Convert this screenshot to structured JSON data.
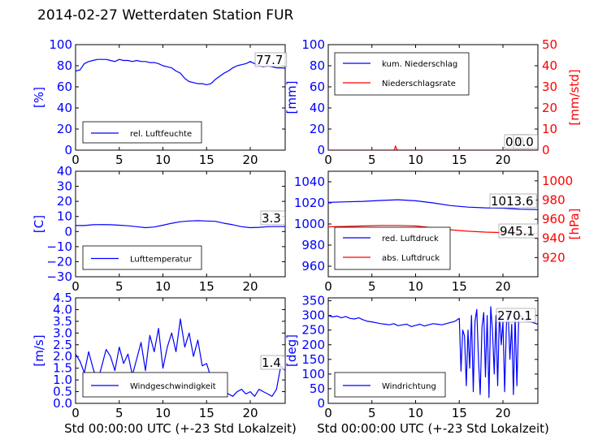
{
  "title": "2014-02-27 Wetterdaten Station FUR",
  "title_suffix": "",
  "xlabel": "Std 00:00:00 UTC (+-23 Std Lokalzeit)",
  "colors": {
    "primary": "#0000ff",
    "secondary": "#ff0000",
    "axis": "#000000"
  },
  "chart_data": [
    {
      "type": "line",
      "panel": "top-left",
      "ylabel": "[%]",
      "ylim": [
        0,
        100
      ],
      "yticks": [
        "0",
        "20",
        "40",
        "60",
        "80",
        "100"
      ],
      "xlim": [
        0,
        24
      ],
      "xticks": [
        "0",
        "5",
        "10",
        "15",
        "20"
      ],
      "legend": {
        "placement": "lower-left",
        "entries": [
          "rel. Luftfeuchte"
        ]
      },
      "annotations": [
        "77.7"
      ],
      "series": [
        {
          "name": "rel. Luftfeuchte",
          "color": "#0000ff",
          "x": [
            0,
            0.5,
            1,
            1.5,
            2,
            2.5,
            3,
            3.5,
            4,
            4.5,
            5,
            5.5,
            6,
            6.5,
            7,
            7.5,
            8,
            8.5,
            9,
            9.5,
            10,
            10.5,
            11,
            11.5,
            12,
            12.5,
            13,
            13.5,
            14,
            14.5,
            15,
            15.5,
            16,
            16.5,
            17,
            17.5,
            18,
            18.5,
            19,
            19.5,
            20,
            20.5,
            21,
            21.5,
            22,
            22.5,
            23,
            23.5,
            24
          ],
          "y": [
            75,
            76,
            82,
            84,
            85,
            86,
            86,
            86,
            85,
            84,
            86,
            85,
            85,
            84,
            85,
            84,
            84,
            83,
            83,
            82,
            80,
            79,
            78,
            75,
            73,
            68,
            65,
            64,
            63,
            63,
            62,
            63,
            67,
            70,
            73,
            75,
            78,
            80,
            81,
            82,
            84,
            82,
            80,
            79,
            80,
            79,
            78,
            78,
            77.7
          ]
        }
      ]
    },
    {
      "type": "line",
      "panel": "top-right",
      "ylabel": "[mm]",
      "ylabel2": "[mm/std]",
      "ylim": [
        0,
        100
      ],
      "ylim2": [
        0,
        50
      ],
      "yticks": [
        "0",
        "20",
        "40",
        "60",
        "80",
        "100"
      ],
      "yticks2": [
        "0",
        "10",
        "20",
        "30",
        "40",
        "50"
      ],
      "xlim": [
        0,
        24
      ],
      "xticks": [
        "0",
        "5",
        "10",
        "15",
        "20"
      ],
      "legend": {
        "placement": "upper-left",
        "entries": [
          "kum. Niederschlag",
          "Niederschlagsrate"
        ]
      },
      "annotations": [
        "0.0",
        "0.0"
      ],
      "series": [
        {
          "name": "kum. Niederschlag",
          "color": "#0000ff",
          "x": [
            0,
            24
          ],
          "y": [
            0,
            0
          ]
        },
        {
          "name": "Niederschlagsrate",
          "color": "#ff0000",
          "axis": "right",
          "x": [
            0,
            7.5,
            7.6,
            7.7,
            7.8,
            7.9,
            8.0,
            24
          ],
          "y": [
            0,
            0,
            0.5,
            2,
            0.8,
            0.3,
            0,
            0
          ]
        }
      ]
    },
    {
      "type": "line",
      "panel": "middle-left",
      "ylabel": "[C]",
      "ylim": [
        -30,
        40
      ],
      "yticks": [
        "−30",
        "−20",
        "−10",
        "0",
        "10",
        "20",
        "30",
        "40"
      ],
      "xlim": [
        0,
        24
      ],
      "xticks": [
        "0",
        "5",
        "10",
        "15",
        "20"
      ],
      "legend": {
        "placement": "lower-left",
        "entries": [
          "Lufttemperatur"
        ]
      },
      "annotations": [
        "3.3"
      ],
      "series": [
        {
          "name": "Lufttemperatur",
          "color": "#0000ff",
          "x": [
            0,
            1,
            2,
            3,
            4,
            5,
            6,
            7,
            8,
            9,
            10,
            11,
            12,
            13,
            14,
            15,
            16,
            17,
            18,
            19,
            20,
            21,
            22,
            23,
            24
          ],
          "y": [
            4,
            4,
            4.5,
            4.6,
            4.5,
            4.2,
            3.8,
            3.2,
            2.6,
            3.0,
            4.2,
            5.5,
            6.5,
            7.0,
            7.2,
            7.0,
            6.8,
            5.5,
            4.5,
            3.2,
            2.6,
            2.8,
            3.2,
            3.3,
            3.3
          ]
        }
      ]
    },
    {
      "type": "line",
      "panel": "middle-right",
      "ylabel": "[hPa]",
      "ylim": [
        950,
        1050
      ],
      "ylim2": [
        900,
        1010
      ],
      "yticks": [
        "960",
        "980",
        "1000",
        "1020",
        "1040"
      ],
      "yticks2": [
        "920",
        "940",
        "960",
        "980",
        "1000"
      ],
      "xlim": [
        0,
        24
      ],
      "xticks": [
        "0",
        "5",
        "10",
        "15",
        "20"
      ],
      "legend": {
        "placement": "lower-left",
        "entries": [
          "red. Luftdruck",
          "abs. Luftdruck"
        ]
      },
      "annotations": [
        "1013.6",
        "945.1"
      ],
      "series": [
        {
          "name": "red. Luftdruck",
          "color": "#0000ff",
          "x": [
            0,
            2,
            4,
            6,
            8,
            10,
            12,
            14,
            16,
            18,
            20,
            22,
            24
          ],
          "y": [
            1020.5,
            1021,
            1021.5,
            1022.3,
            1023,
            1022,
            1020,
            1017.5,
            1016,
            1015.3,
            1015,
            1014,
            1013.6
          ]
        },
        {
          "name": "abs. Luftdruck",
          "color": "#ff0000",
          "axis": "right",
          "x": [
            0,
            2,
            4,
            6,
            8,
            10,
            12,
            14,
            16,
            18,
            20,
            22,
            24
          ],
          "y": [
            952,
            952.5,
            953,
            953.5,
            953.5,
            953,
            951,
            949,
            947.5,
            946.5,
            946,
            945.5,
            945.1
          ]
        }
      ]
    },
    {
      "type": "line",
      "panel": "bottom-left",
      "ylabel": "[m/s]",
      "ylim": [
        0,
        4.5
      ],
      "yticks": [
        "0.0",
        "0.5",
        "1.0",
        "1.5",
        "2.0",
        "2.5",
        "3.0",
        "3.5",
        "4.0",
        "4.5"
      ],
      "xlim": [
        0,
        24
      ],
      "xticks": [
        "0",
        "5",
        "10",
        "15",
        "20"
      ],
      "xlabel": "Std 00:00:00 UTC (+-23 Std Lokalzeit)",
      "legend": {
        "placement": "lower-left",
        "entries": [
          "Windgeschwindigkeit"
        ]
      },
      "annotations": [
        "1.4"
      ],
      "series": [
        {
          "name": "Windgeschwindigkeit",
          "color": "#0000ff",
          "x": [
            0,
            0.5,
            1,
            1.5,
            2,
            2.5,
            3,
            3.5,
            4,
            4.5,
            5,
            5.5,
            6,
            6.5,
            7,
            7.5,
            8,
            8.5,
            9,
            9.5,
            10,
            10.5,
            11,
            11.5,
            12,
            12.5,
            13,
            13.5,
            14,
            14.5,
            15,
            15.5,
            16,
            16.5,
            17,
            17.5,
            18,
            18.5,
            19,
            19.5,
            20,
            20.5,
            21,
            21.5,
            22,
            22.5,
            23,
            23.5,
            24
          ],
          "y": [
            2.1,
            1.8,
            1.3,
            2.2,
            1.5,
            0.9,
            1.6,
            2.3,
            2.0,
            1.4,
            2.4,
            1.7,
            2.1,
            1.2,
            1.9,
            2.6,
            1.4,
            2.9,
            2.2,
            3.2,
            1.5,
            2.4,
            3.0,
            2.2,
            3.6,
            2.4,
            3.0,
            2.0,
            2.7,
            1.6,
            1.7,
            1.1,
            0.6,
            0.9,
            0.5,
            0.4,
            0.3,
            0.5,
            0.6,
            0.4,
            0.5,
            0.3,
            0.6,
            0.5,
            0.4,
            0.3,
            0.6,
            1.6,
            1.4
          ]
        }
      ]
    },
    {
      "type": "line",
      "panel": "bottom-right",
      "ylabel": "[deg]",
      "ylim": [
        0,
        360
      ],
      "yticks": [
        "0",
        "50",
        "100",
        "150",
        "200",
        "250",
        "300",
        "350"
      ],
      "xlim": [
        0,
        24
      ],
      "xticks": [
        "0",
        "5",
        "10",
        "15",
        "20"
      ],
      "xlabel": "Std 00:00:00 UTC (+-23 Std Lokalzeit)",
      "legend": {
        "placement": "lower-left",
        "entries": [
          "Windrichtung"
        ]
      },
      "annotations": [
        "270.1"
      ],
      "series": [
        {
          "name": "Windrichtung",
          "color": "#0000ff",
          "x": [
            0,
            0.5,
            1,
            1.5,
            2,
            2.5,
            3,
            3.5,
            4,
            4.5,
            5,
            5.5,
            6,
            6.5,
            7,
            7.5,
            8,
            8.5,
            9,
            9.5,
            10,
            10.5,
            11,
            11.5,
            12,
            12.5,
            13,
            13.5,
            14,
            14.5,
            15,
            15.2,
            15.4,
            15.6,
            15.8,
            16,
            16.2,
            16.4,
            16.6,
            16.8,
            17,
            17.2,
            17.4,
            17.6,
            17.8,
            18,
            18.2,
            18.4,
            18.6,
            18.8,
            19,
            19.2,
            19.4,
            19.6,
            19.8,
            20,
            20.2,
            20.4,
            20.6,
            20.8,
            21,
            21.2,
            21.4,
            21.6,
            21.8,
            22,
            22.5,
            23,
            23.5,
            24
          ],
          "y": [
            300,
            295,
            298,
            292,
            296,
            290,
            288,
            292,
            285,
            280,
            278,
            275,
            272,
            270,
            268,
            272,
            265,
            268,
            270,
            262,
            266,
            270,
            264,
            268,
            272,
            270,
            268,
            272,
            276,
            280,
            290,
            110,
            250,
            230,
            60,
            250,
            120,
            300,
            40,
            280,
            320,
            150,
            30,
            260,
            310,
            90,
            300,
            20,
            330,
            250,
            100,
            300,
            60,
            310,
            200,
            280,
            40,
            270,
            310,
            150,
            270,
            30,
            300,
            60,
            290,
            300,
            285,
            280,
            275,
            270.1
          ]
        }
      ]
    }
  ]
}
